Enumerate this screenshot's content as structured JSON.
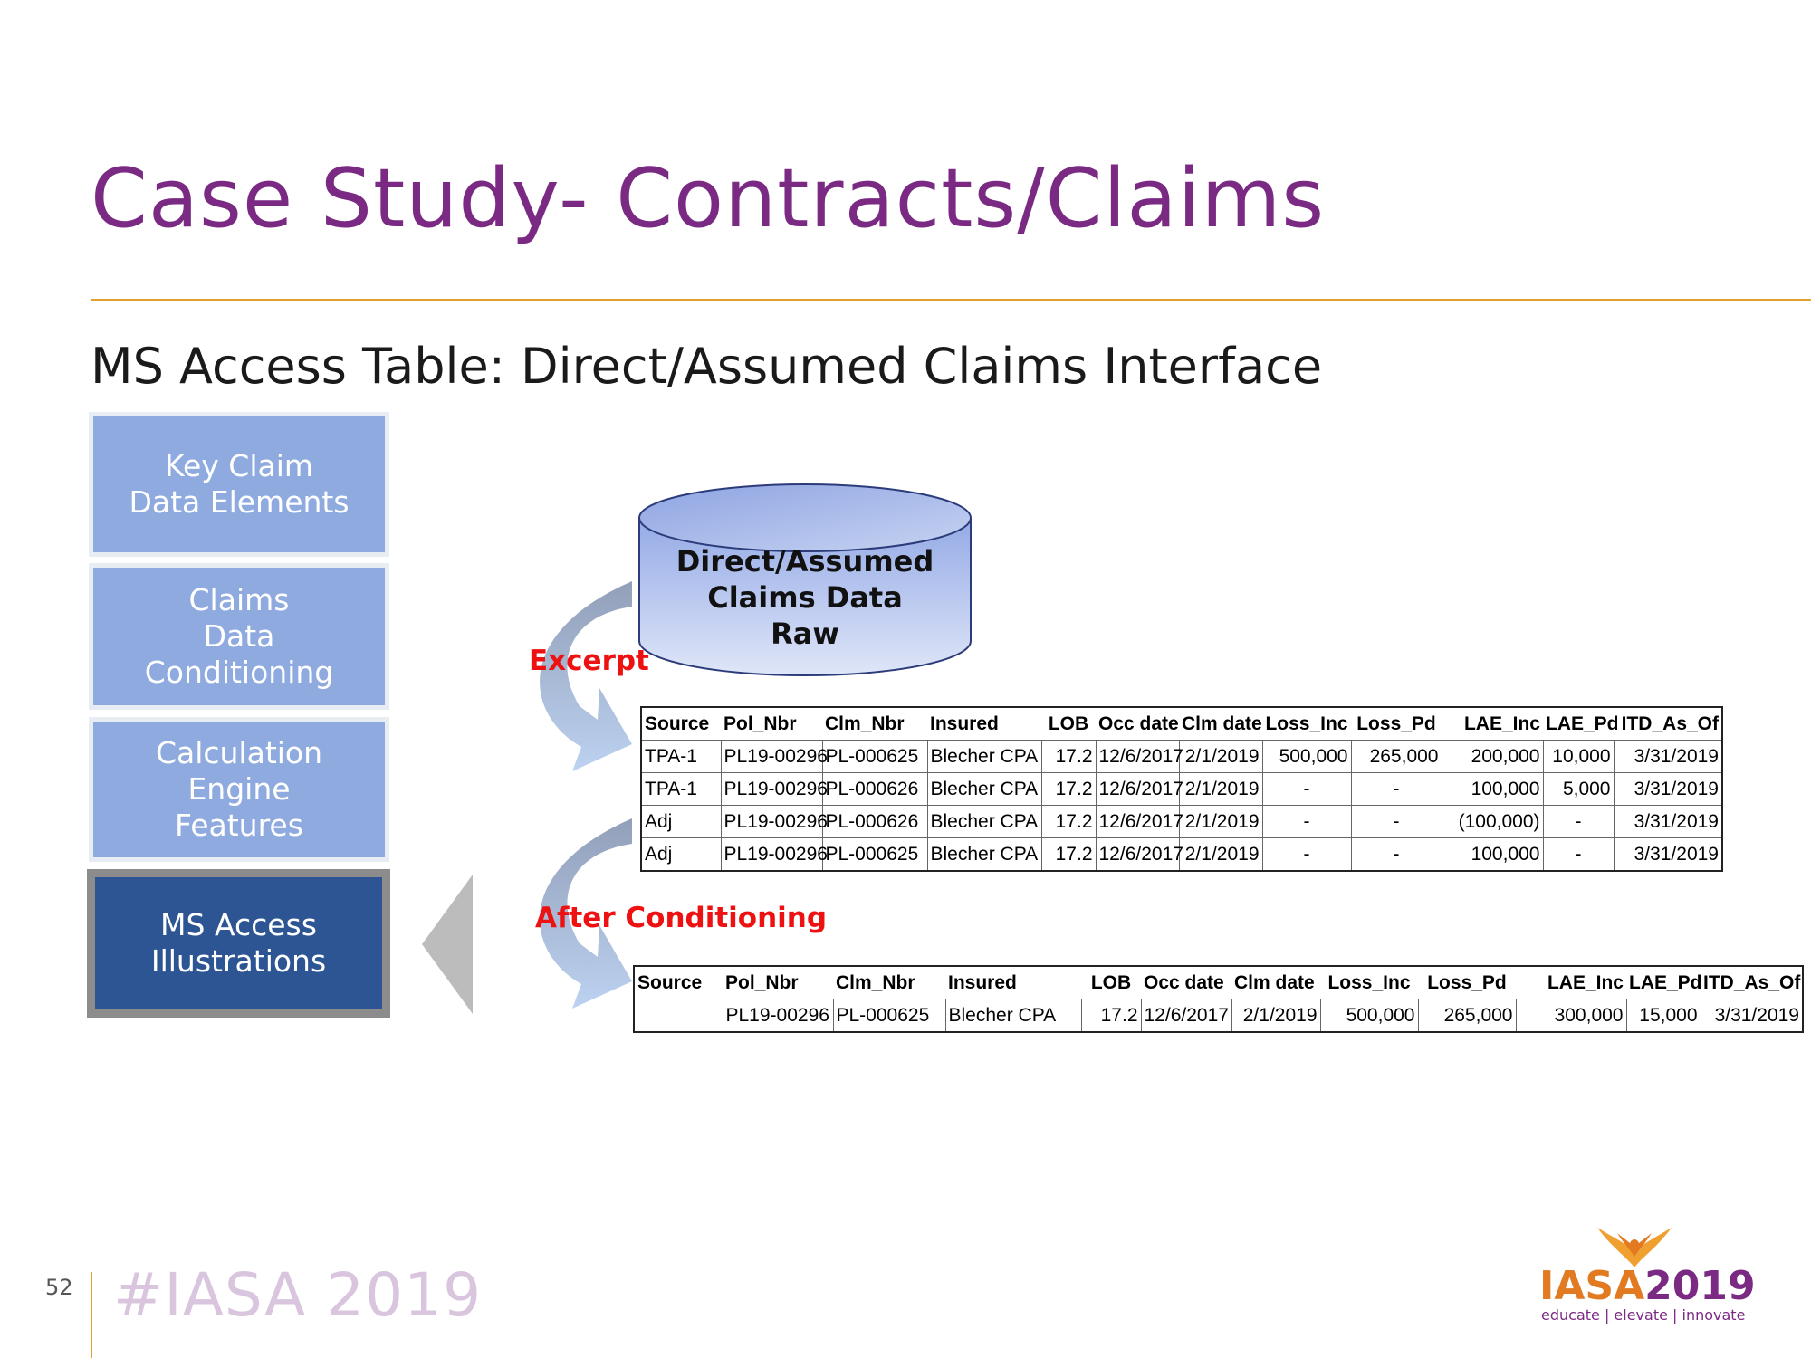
{
  "slide": {
    "title": "Case Study- Contracts/Claims",
    "subtitle": "MS Access Table: Direct/Assumed Claims Interface",
    "page_number": "52",
    "hashtag": "#IASA 2019"
  },
  "nav": {
    "items": [
      {
        "label": "Key Claim\nData Elements"
      },
      {
        "label": "Claims\nData\nConditioning"
      },
      {
        "label": "Calculation\nEngine\nFeatures"
      },
      {
        "label": "MS Access\nIllustrations"
      }
    ]
  },
  "database": {
    "label": "Direct/Assumed\nClaims Data\nRaw"
  },
  "labels": {
    "excerpt": "Excerpt",
    "after": "After Conditioning"
  },
  "excerpt_table": {
    "headers": [
      "Source",
      "Pol_Nbr",
      "Clm_Nbr",
      "Insured",
      "LOB",
      "Occ date",
      "Clm date",
      "Loss_Inc",
      "Loss_Pd",
      "LAE_Inc",
      "LAE_Pd",
      "ITD_As_Of"
    ],
    "rows": [
      [
        "TPA-1",
        "PL19-00296",
        "PL-000625",
        "Blecher CPA",
        "17.2",
        "12/6/2017",
        "2/1/2019",
        "500,000",
        "265,000",
        "200,000",
        "10,000",
        "3/31/2019"
      ],
      [
        "TPA-1",
        "PL19-00296",
        "PL-000626",
        "Blecher CPA",
        "17.2",
        "12/6/2017",
        "2/1/2019",
        "-",
        "-",
        "100,000",
        "5,000",
        "3/31/2019"
      ],
      [
        "Adj",
        "PL19-00296",
        "PL-000626",
        "Blecher CPA",
        "17.2",
        "12/6/2017",
        "2/1/2019",
        "-",
        "-",
        "(100,000)",
        "-",
        "3/31/2019"
      ],
      [
        "Adj",
        "PL19-00296",
        "PL-000625",
        "Blecher CPA",
        "17.2",
        "12/6/2017",
        "2/1/2019",
        "-",
        "-",
        "100,000",
        "-",
        "3/31/2019"
      ]
    ]
  },
  "after_table": {
    "headers": [
      "Source",
      "Pol_Nbr",
      "Clm_Nbr",
      "Insured",
      "LOB",
      "Occ date",
      "Clm date",
      "Loss_Inc",
      "Loss_Pd",
      "LAE_Inc",
      "LAE_Pd",
      "ITD_As_Of"
    ],
    "rows": [
      [
        "",
        "PL19-00296",
        "PL-000625",
        "Blecher CPA",
        "17.2",
        "12/6/2017",
        "2/1/2019",
        "500,000",
        "265,000",
        "300,000",
        "15,000",
        "3/31/2019"
      ]
    ]
  },
  "logo": {
    "word_a": "IASA",
    "word_b": "2019",
    "tagline": "educate | elevate | innovate",
    "colors": {
      "iasa": "#e27a22",
      "year": "#7b2a84",
      "flame": "#f0a030"
    }
  },
  "colors": {
    "title": "#7b2a84",
    "rule": "#e0a030",
    "nav_inactive": "#8eaadf",
    "nav_active": "#2d5594",
    "callout_red": "#ee1111"
  }
}
